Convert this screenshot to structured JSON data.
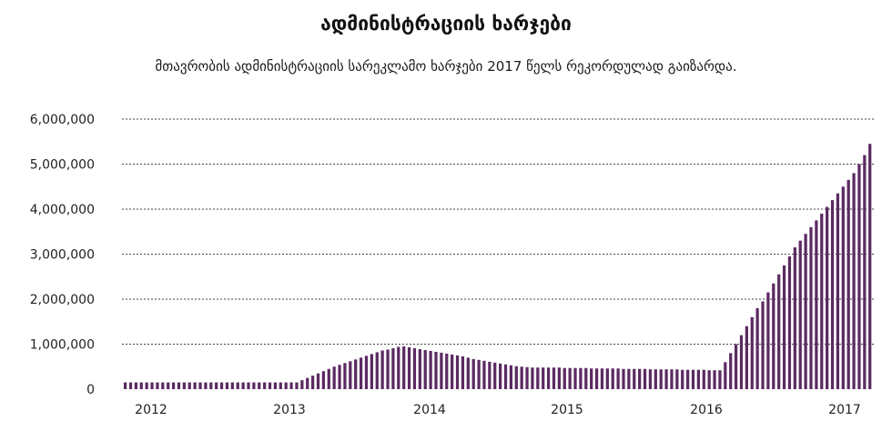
{
  "chart_data": {
    "type": "bar",
    "title": "ადმინისტრაციის ხარჯები",
    "subtitle": "მთავრობის ადმინისტრაციის სარეკლამო ხარჯები 2017 წელს რეკორდულად გაიზარდა.",
    "xlabel": "",
    "ylabel": "",
    "ylim": [
      0,
      6000000
    ],
    "yticks": [
      0,
      1000000,
      2000000,
      3000000,
      4000000,
      5000000,
      6000000
    ],
    "ytick_labels": [
      "0",
      "1,000,000",
      "2,000,000",
      "3,000,000",
      "4,000,000",
      "5,000,000",
      "6,000,000"
    ],
    "xtick_labels": [
      "2012",
      "2013",
      "2014",
      "2015",
      "2016",
      "2017"
    ],
    "grid": true,
    "color": "#5b2a62",
    "values": [
      150000,
      150000,
      150000,
      150000,
      150000,
      150000,
      150000,
      150000,
      150000,
      150000,
      150000,
      150000,
      150000,
      150000,
      150000,
      150000,
      150000,
      150000,
      150000,
      150000,
      150000,
      150000,
      150000,
      150000,
      150000,
      150000,
      150000,
      150000,
      150000,
      150000,
      150000,
      150000,
      150000,
      200000,
      250000,
      300000,
      350000,
      400000,
      450000,
      500000,
      540000,
      580000,
      620000,
      660000,
      700000,
      740000,
      780000,
      820000,
      860000,
      880000,
      910000,
      940000,
      950000,
      930000,
      910000,
      890000,
      870000,
      850000,
      830000,
      810000,
      790000,
      770000,
      750000,
      730000,
      700000,
      670000,
      650000,
      630000,
      610000,
      590000,
      570000,
      550000,
      530000,
      510000,
      500000,
      490000,
      480000,
      480000,
      480000,
      480000,
      480000,
      480000,
      470000,
      470000,
      470000,
      470000,
      470000,
      460000,
      460000,
      460000,
      460000,
      460000,
      460000,
      450000,
      450000,
      450000,
      450000,
      450000,
      440000,
      440000,
      440000,
      440000,
      440000,
      440000,
      430000,
      430000,
      430000,
      430000,
      430000,
      420000,
      420000,
      420000,
      600000,
      800000,
      1000000,
      1200000,
      1400000,
      1600000,
      1800000,
      1950000,
      2150000,
      2350000,
      2550000,
      2750000,
      2950000,
      3150000,
      3300000,
      3450000,
      3600000,
      3750000,
      3900000,
      4050000,
      4200000,
      4350000,
      4500000,
      4650000,
      4800000,
      5000000,
      5200000,
      5450000
    ]
  }
}
